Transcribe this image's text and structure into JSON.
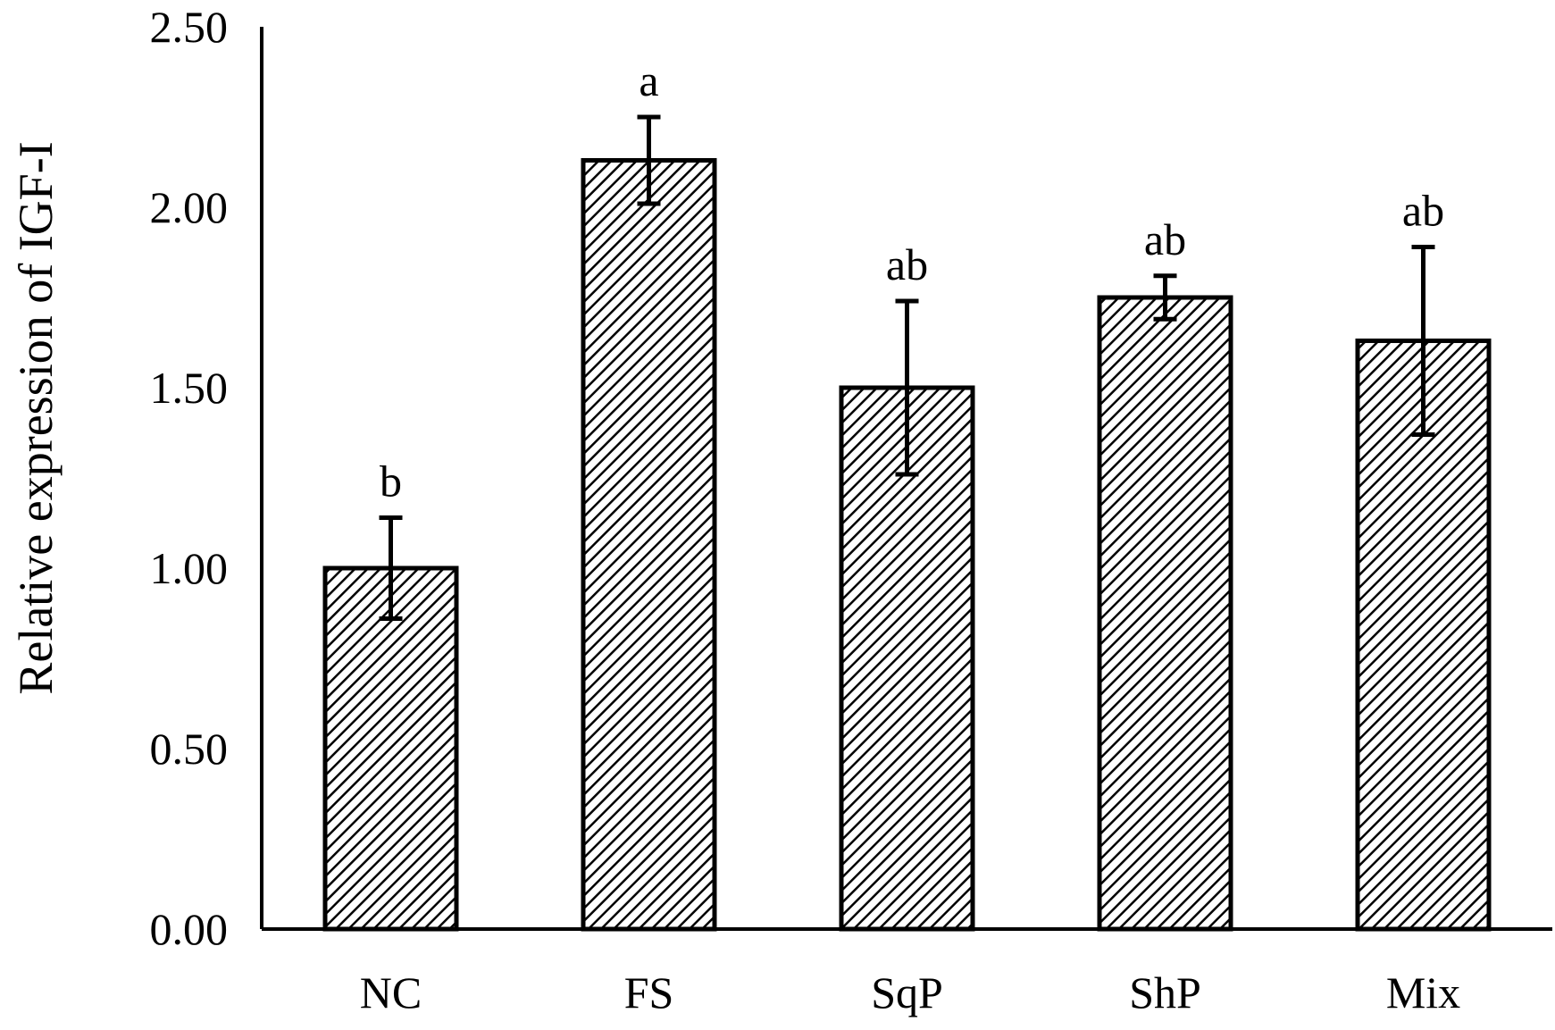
{
  "chart_data": {
    "type": "bar",
    "title": "",
    "xlabel": "",
    "ylabel": "Relative expression of IGF-I",
    "categories": [
      "NC",
      "FS",
      "SqP",
      "ShP",
      "Mix"
    ],
    "values": [
      1.0,
      2.13,
      1.5,
      1.75,
      1.63
    ],
    "errors": [
      0.14,
      0.12,
      0.24,
      0.06,
      0.26
    ],
    "significance": [
      "b",
      "a",
      "ab",
      "ab",
      "ab"
    ],
    "ylim": [
      0,
      2.5
    ],
    "yticks": [
      "0.00",
      "0.50",
      "1.00",
      "1.50",
      "2.00",
      "2.50"
    ],
    "grid": false,
    "legend": "none",
    "bar_pattern": "diagonal-hatch",
    "colors": {
      "bar_fill": "#ffffff",
      "hatch": "#000000",
      "outline": "#000000"
    }
  }
}
